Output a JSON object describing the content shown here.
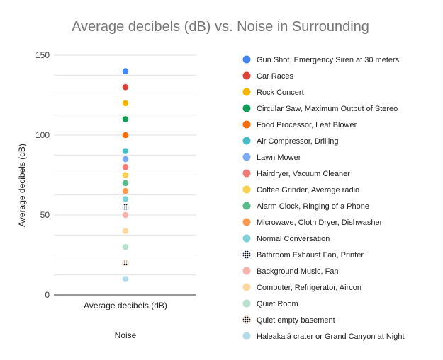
{
  "chart_data": {
    "type": "scatter",
    "title": "Average decibels (dB) vs. Noise in Surrounding",
    "xlabel": "Noise",
    "ylabel": "Average decibels (dB)",
    "categories": [
      "Average decibels (dB)"
    ],
    "ylim": [
      0,
      150
    ],
    "yticks": [
      0,
      50,
      100,
      150
    ],
    "grid": true,
    "legend_position": "right",
    "series": [
      {
        "name": "Gun Shot, Emergency Siren at 30 meters",
        "values": [
          140
        ],
        "color": "#4285f4",
        "style": "solid"
      },
      {
        "name": "Car Races",
        "values": [
          130
        ],
        "color": "#db4437",
        "style": "solid"
      },
      {
        "name": "Rock Concert",
        "values": [
          120
        ],
        "color": "#f4b400",
        "style": "solid"
      },
      {
        "name": "Circular Saw, Maximum Output of Stereo",
        "values": [
          110
        ],
        "color": "#0f9d58",
        "style": "solid"
      },
      {
        "name": "Food Processor, Leaf Blower",
        "values": [
          100
        ],
        "color": "#ff6d00",
        "style": "solid"
      },
      {
        "name": "Air Compressor, Drilling",
        "values": [
          90
        ],
        "color": "#46bdc6",
        "style": "solid"
      },
      {
        "name": "Lawn Mower",
        "values": [
          85
        ],
        "color": "#7baaf7",
        "style": "solid"
      },
      {
        "name": "Hairdryer, Vacuum Cleaner",
        "values": [
          80
        ],
        "color": "#f07b72",
        "style": "solid"
      },
      {
        "name": "Coffee Grinder, Average radio",
        "values": [
          75
        ],
        "color": "#fcd04f",
        "style": "solid"
      },
      {
        "name": "Alarm Clock, Ringing of a Phone",
        "values": [
          70
        ],
        "color": "#57bb8a",
        "style": "solid"
      },
      {
        "name": "Microwave, Cloth Dryer, Dishwasher",
        "values": [
          65
        ],
        "color": "#ff994d",
        "style": "solid"
      },
      {
        "name": "Normal Conversation",
        "values": [
          60
        ],
        "color": "#7ed1d7",
        "style": "solid"
      },
      {
        "name": "Bathroom Exhaust Fan, Printer",
        "values": [
          55
        ],
        "color": "#b3cefb",
        "style": "dotted"
      },
      {
        "name": "Background Music, Fan",
        "values": [
          50
        ],
        "color": "#f7b4ae",
        "style": "solid"
      },
      {
        "name": "Computer, Refrigerator, Aircon",
        "values": [
          40
        ],
        "color": "#fdd9a0",
        "style": "solid"
      },
      {
        "name": "Quiet Room",
        "values": [
          30
        ],
        "color": "#b7e1cd",
        "style": "solid"
      },
      {
        "name": "Quiet empty basement",
        "values": [
          20
        ],
        "color": "#f9c89b",
        "style": "dotted"
      },
      {
        "name": "Haleakalā crater or Grand Canyon at Night",
        "values": [
          10
        ],
        "color": "#b3dbe8",
        "style": "solid"
      }
    ]
  }
}
